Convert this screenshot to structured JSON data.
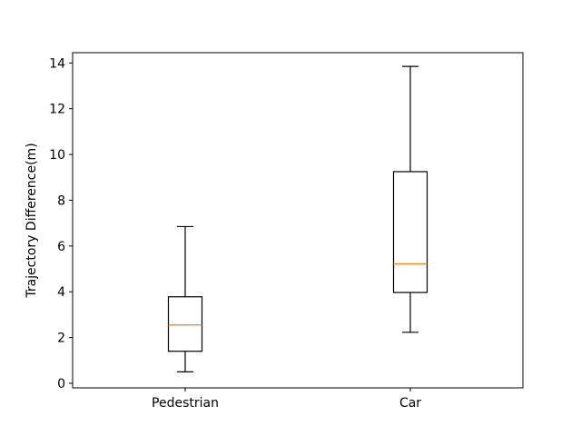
{
  "chart_data": {
    "type": "boxplot",
    "title": "",
    "xlabel": "",
    "ylabel": "Trajectory Difference(m)",
    "ylim": [
      -0.2,
      14.45
    ],
    "yticks": [
      0,
      2,
      4,
      6,
      8,
      10,
      12,
      14
    ],
    "grid": false,
    "categories": [
      "Pedestrian",
      "Car"
    ],
    "boxes": [
      {
        "category": "Pedestrian",
        "whisker_low": 0.5,
        "q1": 1.4,
        "median": 2.55,
        "q3": 3.78,
        "whisker_high": 6.85
      },
      {
        "category": "Car",
        "whisker_low": 2.23,
        "q1": 3.97,
        "median": 5.22,
        "q3": 9.25,
        "whisker_high": 13.85
      }
    ],
    "colors": {
      "box": "#000000",
      "median": "#ff7f0e",
      "axes": "#000000"
    }
  }
}
